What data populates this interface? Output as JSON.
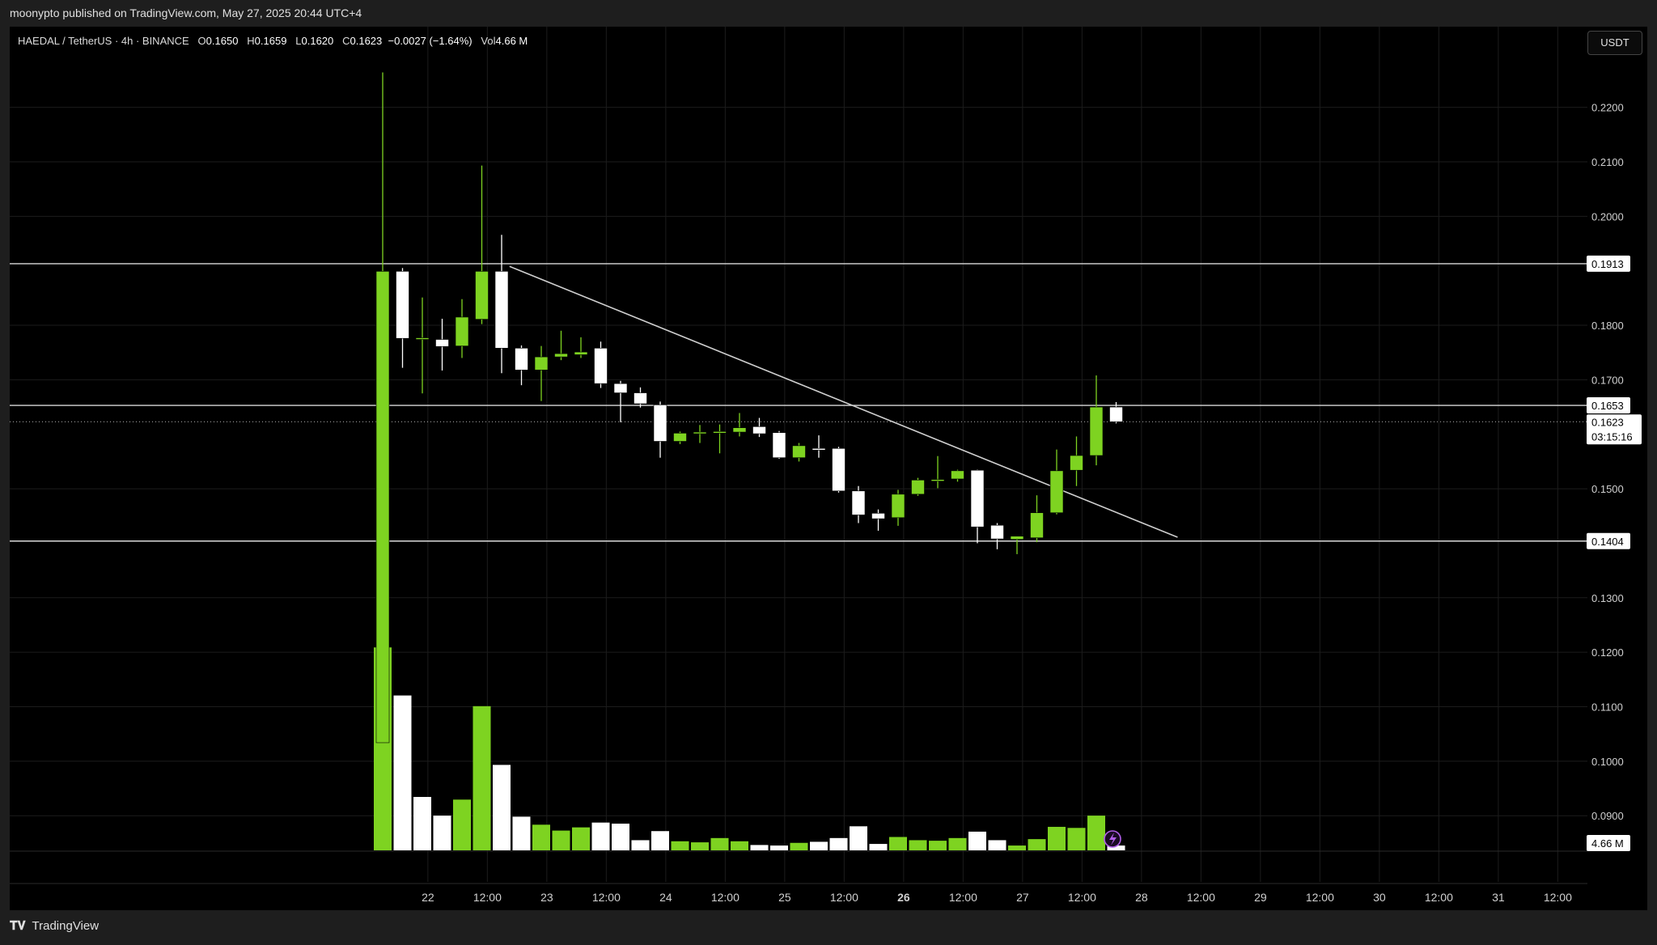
{
  "header": {
    "publish_text": "moonypto published on TradingView.com, May 27, 2025 20:44 UTC+4"
  },
  "symbol": {
    "name": "HAEDAL / TetherUS · 4h · BINANCE",
    "o_label": "O",
    "o": "0.1650",
    "h_label": "H",
    "h": "0.1659",
    "l_label": "L",
    "l": "0.1620",
    "c_label": "C",
    "c": "0.1623",
    "change": "−0.0027 (−1.64%)",
    "vol_label": "Vol",
    "vol": "4.66 M"
  },
  "currency_button": "USDT",
  "footer": {
    "brand": "TradingView"
  },
  "colors": {
    "up": "#7ed321",
    "down": "#ffffff",
    "background": "#000000",
    "line": "#d9d9d9"
  },
  "chart_data": {
    "type": "candlestick",
    "timeframe": "4h",
    "y_ticks": [
      "0.2200",
      "0.2100",
      "0.2000",
      "0.1800",
      "0.1700",
      "0.1500",
      "0.1300",
      "0.1200",
      "0.1100",
      "0.1000",
      "0.0900"
    ],
    "ylim": [
      0.0835,
      0.229
    ],
    "x_ticks": [
      {
        "label": "22",
        "i": 2.28,
        "bold": false
      },
      {
        "label": "12:00",
        "i": 5.28,
        "bold": false
      },
      {
        "label": "23",
        "i": 8.28,
        "bold": false
      },
      {
        "label": "12:00",
        "i": 11.28,
        "bold": false
      },
      {
        "label": "24",
        "i": 14.28,
        "bold": false
      },
      {
        "label": "12:00",
        "i": 17.28,
        "bold": false
      },
      {
        "label": "25",
        "i": 20.28,
        "bold": false
      },
      {
        "label": "12:00",
        "i": 23.28,
        "bold": false
      },
      {
        "label": "26",
        "i": 26.28,
        "bold": true
      },
      {
        "label": "12:00",
        "i": 29.28,
        "bold": false
      },
      {
        "label": "27",
        "i": 32.28,
        "bold": false
      },
      {
        "label": "12:00",
        "i": 35.28,
        "bold": false
      },
      {
        "label": "28",
        "i": 38.28,
        "bold": false
      },
      {
        "label": "12:00",
        "i": 41.28,
        "bold": false
      },
      {
        "label": "29",
        "i": 44.28,
        "bold": false
      },
      {
        "label": "12:00",
        "i": 47.28,
        "bold": false
      },
      {
        "label": "30",
        "i": 50.28,
        "bold": false
      },
      {
        "label": "12:00",
        "i": 53.28,
        "bold": false
      },
      {
        "label": "31",
        "i": 56.28,
        "bold": false
      },
      {
        "label": "12:00",
        "i": 59.28,
        "bold": false
      }
    ],
    "candles": [
      {
        "o": 0.1034,
        "h": 0.2264,
        "l": 0.1034,
        "c": 0.1899
      },
      {
        "o": 0.1899,
        "h": 0.1905,
        "l": 0.1722,
        "c": 0.1776
      },
      {
        "o": 0.1777,
        "h": 0.1851,
        "l": 0.1675,
        "c": 0.1777
      },
      {
        "o": 0.1774,
        "h": 0.1812,
        "l": 0.1717,
        "c": 0.1761
      },
      {
        "o": 0.1762,
        "h": 0.1848,
        "l": 0.174,
        "c": 0.1815
      },
      {
        "o": 0.1811,
        "h": 0.2093,
        "l": 0.1802,
        "c": 0.1899
      },
      {
        "o": 0.1899,
        "h": 0.1966,
        "l": 0.1712,
        "c": 0.1758
      },
      {
        "o": 0.1758,
        "h": 0.1763,
        "l": 0.169,
        "c": 0.1718
      },
      {
        "o": 0.1718,
        "h": 0.1762,
        "l": 0.1661,
        "c": 0.1742
      },
      {
        "o": 0.1742,
        "h": 0.179,
        "l": 0.1736,
        "c": 0.1748
      },
      {
        "o": 0.1746,
        "h": 0.1778,
        "l": 0.174,
        "c": 0.1751
      },
      {
        "o": 0.1758,
        "h": 0.177,
        "l": 0.1685,
        "c": 0.1693
      },
      {
        "o": 0.1693,
        "h": 0.1698,
        "l": 0.1622,
        "c": 0.1676
      },
      {
        "o": 0.1676,
        "h": 0.1686,
        "l": 0.1649,
        "c": 0.1656
      },
      {
        "o": 0.1654,
        "h": 0.166,
        "l": 0.1557,
        "c": 0.1587
      },
      {
        "o": 0.1587,
        "h": 0.1605,
        "l": 0.1582,
        "c": 0.1602
      },
      {
        "o": 0.1604,
        "h": 0.1617,
        "l": 0.1584,
        "c": 0.1604
      },
      {
        "o": 0.1605,
        "h": 0.1618,
        "l": 0.1565,
        "c": 0.1605
      },
      {
        "o": 0.1604,
        "h": 0.1639,
        "l": 0.1596,
        "c": 0.1612
      },
      {
        "o": 0.1614,
        "h": 0.163,
        "l": 0.1595,
        "c": 0.1601
      },
      {
        "o": 0.1603,
        "h": 0.1606,
        "l": 0.1555,
        "c": 0.1557
      },
      {
        "o": 0.1557,
        "h": 0.1584,
        "l": 0.155,
        "c": 0.1579
      },
      {
        "o": 0.1574,
        "h": 0.1598,
        "l": 0.1557,
        "c": 0.1572
      },
      {
        "o": 0.1574,
        "h": 0.1577,
        "l": 0.1493,
        "c": 0.1496
      },
      {
        "o": 0.1496,
        "h": 0.1505,
        "l": 0.1437,
        "c": 0.1452
      },
      {
        "o": 0.1455,
        "h": 0.1462,
        "l": 0.1423,
        "c": 0.1445
      },
      {
        "o": 0.1447,
        "h": 0.1498,
        "l": 0.1432,
        "c": 0.149
      },
      {
        "o": 0.149,
        "h": 0.152,
        "l": 0.1487,
        "c": 0.1516
      },
      {
        "o": 0.1516,
        "h": 0.156,
        "l": 0.1501,
        "c": 0.1517
      },
      {
        "o": 0.1518,
        "h": 0.1535,
        "l": 0.1513,
        "c": 0.1533
      },
      {
        "o": 0.1534,
        "h": 0.1535,
        "l": 0.14,
        "c": 0.143
      },
      {
        "o": 0.1433,
        "h": 0.1437,
        "l": 0.1389,
        "c": 0.1408
      },
      {
        "o": 0.1407,
        "h": 0.1413,
        "l": 0.138,
        "c": 0.1413
      },
      {
        "o": 0.141,
        "h": 0.1488,
        "l": 0.1402,
        "c": 0.1456
      },
      {
        "o": 0.1456,
        "h": 0.1572,
        "l": 0.1453,
        "c": 0.1533
      },
      {
        "o": 0.1534,
        "h": 0.1596,
        "l": 0.1505,
        "c": 0.1561
      },
      {
        "o": 0.1561,
        "h": 0.1708,
        "l": 0.1543,
        "c": 0.165
      },
      {
        "o": 0.165,
        "h": 0.1659,
        "l": 0.162,
        "c": 0.1623
      }
    ],
    "volume": [
      {
        "v": 0.38,
        "c": "up"
      },
      {
        "v": 0.29,
        "c": "down"
      },
      {
        "v": 0.1,
        "c": "down"
      },
      {
        "v": 0.065,
        "c": "down"
      },
      {
        "v": 0.095,
        "c": "up"
      },
      {
        "v": 0.27,
        "c": "up"
      },
      {
        "v": 0.16,
        "c": "down"
      },
      {
        "v": 0.063,
        "c": "down"
      },
      {
        "v": 0.048,
        "c": "up"
      },
      {
        "v": 0.037,
        "c": "up"
      },
      {
        "v": 0.043,
        "c": "up"
      },
      {
        "v": 0.052,
        "c": "down"
      },
      {
        "v": 0.05,
        "c": "down"
      },
      {
        "v": 0.019,
        "c": "down"
      },
      {
        "v": 0.036,
        "c": "down"
      },
      {
        "v": 0.017,
        "c": "up"
      },
      {
        "v": 0.015,
        "c": "up"
      },
      {
        "v": 0.023,
        "c": "up"
      },
      {
        "v": 0.017,
        "c": "up"
      },
      {
        "v": 0.01,
        "c": "down"
      },
      {
        "v": 0.009,
        "c": "down"
      },
      {
        "v": 0.014,
        "c": "up"
      },
      {
        "v": 0.016,
        "c": "down"
      },
      {
        "v": 0.023,
        "c": "down"
      },
      {
        "v": 0.045,
        "c": "down"
      },
      {
        "v": 0.012,
        "c": "down"
      },
      {
        "v": 0.025,
        "c": "up"
      },
      {
        "v": 0.019,
        "c": "up"
      },
      {
        "v": 0.018,
        "c": "up"
      },
      {
        "v": 0.023,
        "c": "up"
      },
      {
        "v": 0.035,
        "c": "down"
      },
      {
        "v": 0.019,
        "c": "down"
      },
      {
        "v": 0.009,
        "c": "up"
      },
      {
        "v": 0.021,
        "c": "up"
      },
      {
        "v": 0.044,
        "c": "up"
      },
      {
        "v": 0.042,
        "c": "up"
      },
      {
        "v": 0.065,
        "c": "up"
      },
      {
        "v": 0.009,
        "c": "down"
      }
    ],
    "horizontal_levels": [
      {
        "value": 0.1913,
        "label": "0.1913",
        "style": "solid"
      },
      {
        "value": 0.1653,
        "label": "0.1653",
        "style": "solid"
      },
      {
        "value": 0.1404,
        "label": "0.1404",
        "style": "solid"
      }
    ],
    "last_price": {
      "value": 0.1623,
      "label": "0.1623",
      "countdown": "03:15:16"
    },
    "volume_label": "4.66 M",
    "trendline": {
      "from": {
        "i": 6.4,
        "price": 0.1908
      },
      "to": {
        "i": 40.1,
        "price": 0.1411
      }
    },
    "grid": true
  }
}
